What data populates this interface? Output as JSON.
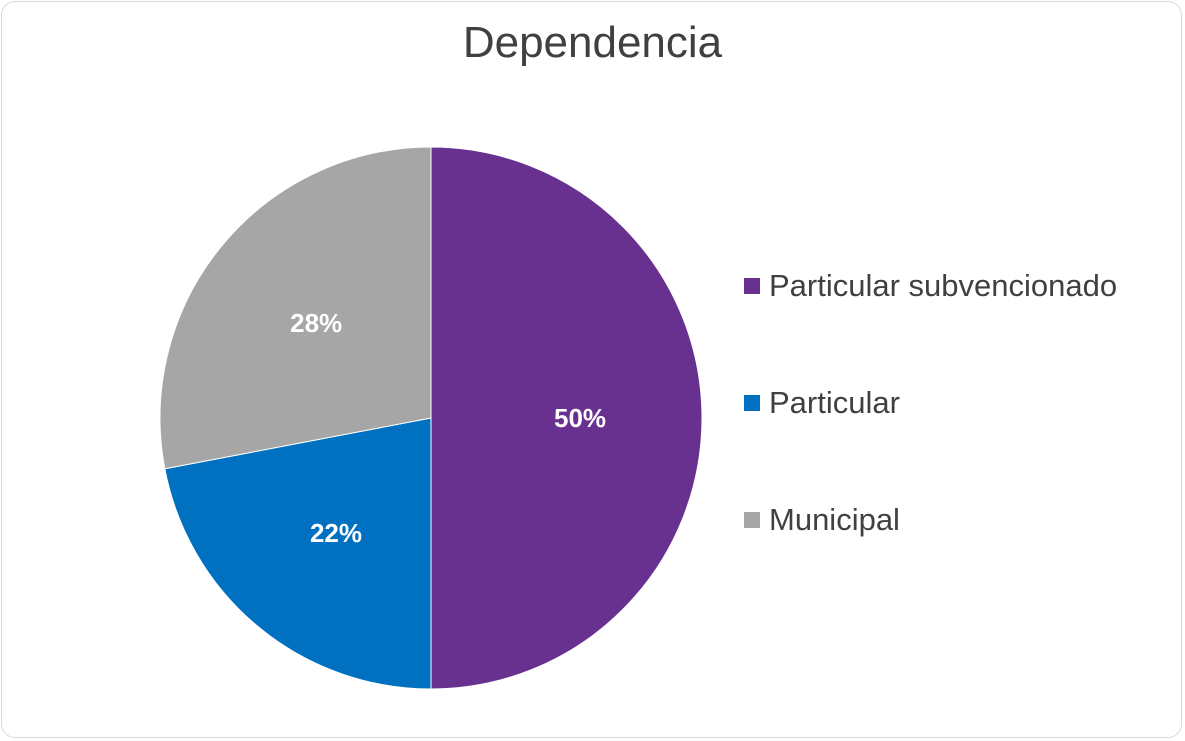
{
  "chart_data": {
    "type": "pie",
    "title": "Dependencia",
    "categories": [
      "Particular subvencionado",
      "Particular",
      "Municipal"
    ],
    "values": [
      50,
      22,
      28
    ],
    "data_labels": [
      "50%",
      "22%",
      "28%"
    ],
    "colors": [
      "#68318f",
      "#0071c1",
      "#a6a6a6"
    ],
    "legend_position": "right"
  }
}
